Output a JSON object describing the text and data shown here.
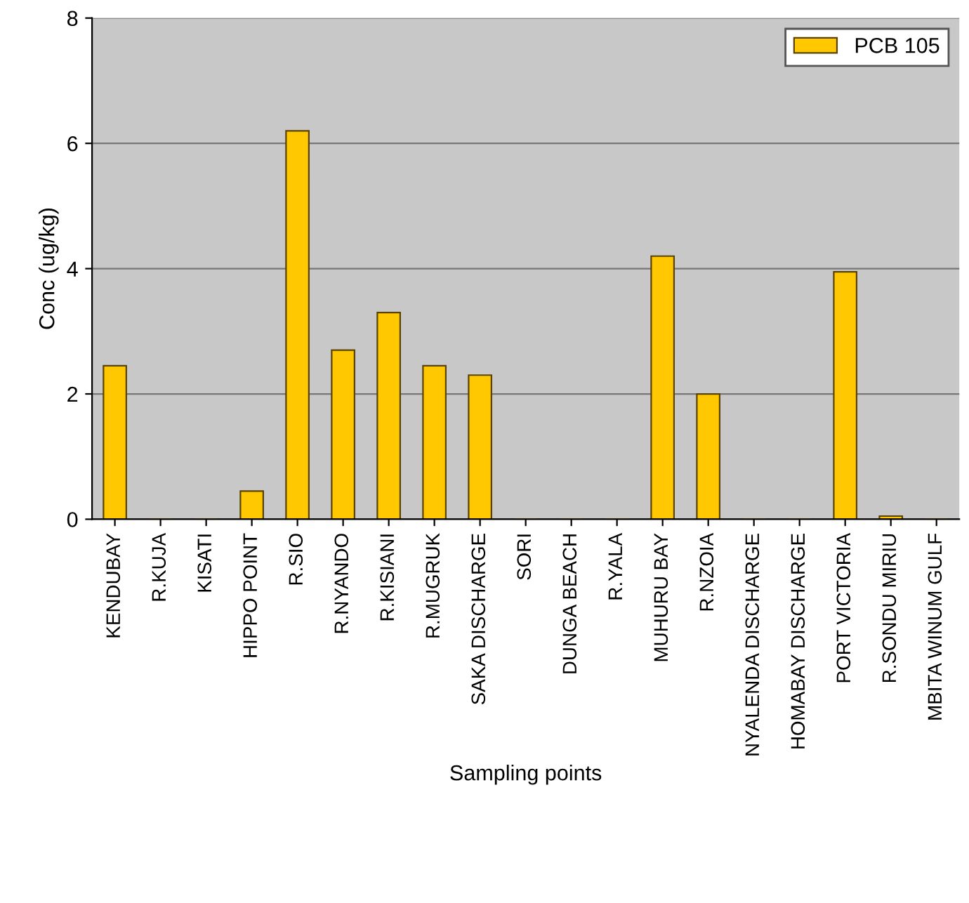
{
  "chart_data": {
    "type": "bar",
    "xlabel": "Sampling points",
    "ylabel": "Conc (ug/kg)",
    "categories": [
      "KENDUBAY",
      "R.KUJA",
      "KISATI",
      "HIPPO POINT",
      "R.SIO",
      "R.NYANDO",
      "R.KISIANI",
      "R.MUGRUK",
      "SAKA DISCHARGE",
      "SORI",
      "DUNGA BEACH",
      "R.YALA",
      "MUHURU BAY",
      "R.NZOIA",
      "NYALENDA DISCHARGE",
      "HOMABAY DISCHARGE",
      "PORT VICTORIA",
      "R.SONDU MIRIU",
      "MBITA WINUM GULF"
    ],
    "series": [
      {
        "name": "PCB 105",
        "color": "#ffc800",
        "values": [
          2.45,
          0,
          0,
          0.45,
          6.2,
          2.7,
          3.3,
          2.45,
          2.3,
          0,
          0,
          0,
          4.2,
          2.0,
          0,
          0,
          3.95,
          0.05,
          0
        ]
      }
    ],
    "ylim": [
      0,
      8
    ],
    "yticks": [
      0,
      2,
      4,
      6,
      8
    ],
    "grid": "y",
    "legend": "top right"
  }
}
